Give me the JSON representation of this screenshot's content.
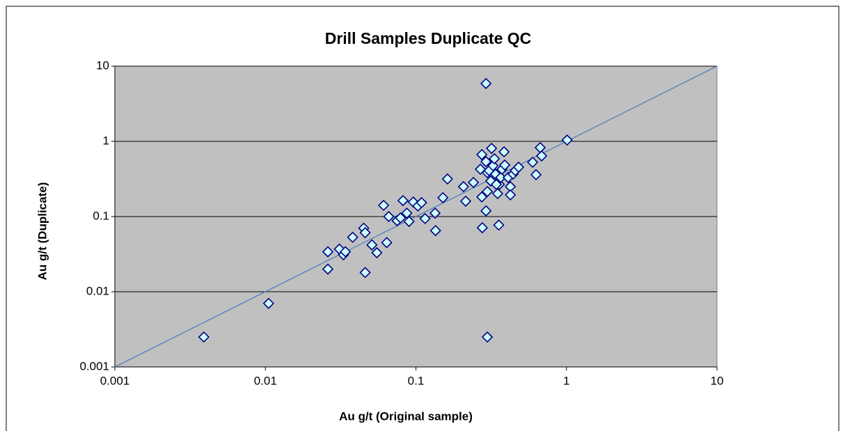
{
  "chart_data": {
    "type": "scatter",
    "title": "Drill Samples Duplicate QC",
    "x_label": "Au g/t (Original sample)",
    "y_label": "Au g/t (Duplicate)",
    "xscale": "log",
    "yscale": "log",
    "xlim": [
      0.001,
      10
    ],
    "ylim": [
      0.001,
      10
    ],
    "xticks": [
      0.001,
      0.01,
      0.1,
      1,
      10
    ],
    "yticks": [
      0.001,
      0.01,
      0.1,
      1,
      10
    ],
    "grid": true,
    "plot_background": "#c0c0c0",
    "series": [
      {
        "color": "#ccffff",
        "edge_color": "#000080",
        "marker": "diamond",
        "x": [
          0.0039,
          0.0105,
          0.026,
          0.026,
          0.031,
          0.033,
          0.034,
          0.038,
          0.045,
          0.046,
          0.046,
          0.051,
          0.055,
          0.064,
          0.061,
          0.066,
          0.075,
          0.079,
          0.082,
          0.087,
          0.09,
          0.096,
          0.103,
          0.109,
          0.115,
          0.134,
          0.135,
          0.151,
          0.162,
          0.207,
          0.214,
          0.241,
          0.268,
          0.274,
          0.276,
          0.292,
          0.298,
          0.274,
          0.292,
          0.306,
          0.318,
          0.325,
          0.338,
          0.349,
          0.358,
          0.366,
          0.373,
          0.389,
          0.314,
          0.298,
          0.41,
          0.424,
          0.442,
          0.457,
          0.481,
          0.355,
          0.385,
          0.424,
          0.596,
          0.628,
          0.669,
          0.684,
          0.292,
          0.298,
          1.01,
          0.342,
          0.332
        ],
        "values": [
          0.0025,
          0.007,
          0.02,
          0.034,
          0.037,
          0.031,
          0.034,
          0.053,
          0.07,
          0.061,
          0.018,
          0.042,
          0.033,
          0.045,
          0.141,
          0.1,
          0.088,
          0.096,
          0.163,
          0.111,
          0.086,
          0.156,
          0.138,
          0.153,
          0.094,
          0.111,
          0.065,
          0.178,
          0.316,
          0.25,
          0.16,
          0.284,
          0.426,
          0.182,
          0.071,
          0.119,
          0.383,
          0.667,
          0.538,
          0.408,
          0.807,
          0.474,
          0.367,
          0.202,
          0.267,
          0.33,
          0.426,
          0.484,
          0.297,
          0.215,
          0.33,
          0.25,
          0.367,
          0.408,
          0.454,
          0.077,
          0.726,
          0.194,
          0.527,
          0.36,
          0.826,
          0.64,
          5.87,
          0.0025,
          1.04,
          0.267,
          0.587
        ]
      }
    ],
    "reference_line": {
      "color": "#4f81bd",
      "x": [
        0.001,
        10
      ],
      "values": [
        0.001,
        10
      ]
    }
  }
}
